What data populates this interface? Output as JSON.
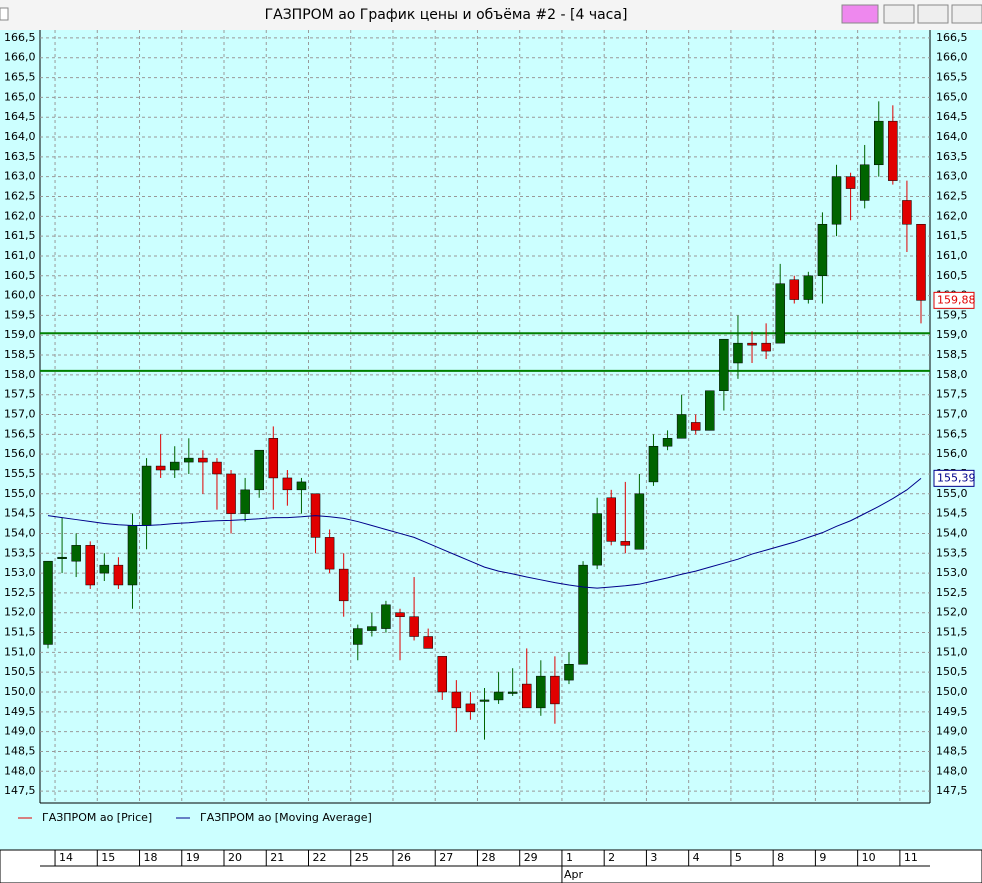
{
  "chart_data": {
    "type": "candlestick",
    "title": "ГАЗПРОМ ао График цены и объёма #2 - [4 часа]",
    "series": [
      {
        "name": "ГАЗПРОМ ао [Price]",
        "color": "#e00000",
        "up_color": "#006400",
        "last_label": "159,88",
        "open": [
          151.2,
          153.4,
          153.3,
          153.7,
          153.0,
          153.2,
          152.7,
          154.2,
          155.7,
          155.6,
          155.8,
          155.9,
          155.8,
          155.5,
          154.5,
          155.1,
          156.4,
          155.4,
          155.1,
          155.0,
          153.9,
          153.1,
          151.2,
          151.55,
          151.6,
          152.0,
          151.9,
          151.4,
          150.9,
          150.0,
          149.7,
          149.8,
          149.8,
          150.0,
          150.2,
          149.6,
          150.4,
          150.3,
          150.7,
          153.2,
          154.9,
          153.8,
          153.6,
          155.3,
          156.2,
          156.4,
          156.8,
          156.6,
          157.6,
          158.3,
          158.8,
          158.8,
          158.8,
          160.4,
          159.9,
          160.5,
          161.8,
          163.0,
          162.4,
          163.3,
          164.4,
          162.4,
          161.8
        ],
        "high": [
          153.3,
          154.4,
          154.0,
          153.8,
          153.5,
          153.4,
          154.5,
          155.9,
          156.5,
          156.2,
          156.4,
          156.1,
          155.9,
          155.6,
          155.4,
          156.1,
          156.7,
          155.6,
          155.4,
          155.0,
          154.1,
          153.5,
          151.7,
          152.0,
          152.3,
          152.1,
          152.9,
          151.6,
          150.9,
          150.3,
          150.0,
          150.1,
          150.5,
          150.6,
          151.1,
          150.8,
          150.9,
          151.0,
          153.3,
          154.9,
          155.1,
          155.3,
          155.5,
          156.5,
          156.6,
          157.5,
          157.0,
          157.6,
          158.9,
          159.5,
          159.1,
          159.3,
          160.8,
          160.5,
          160.6,
          162.1,
          163.3,
          163.1,
          163.8,
          164.9,
          164.8,
          162.9,
          161.8
        ],
        "low": [
          151.1,
          153.0,
          152.9,
          152.6,
          152.8,
          152.6,
          152.1,
          153.6,
          155.4,
          155.4,
          155.5,
          155.0,
          154.6,
          154.0,
          154.3,
          154.9,
          154.6,
          154.7,
          154.5,
          153.5,
          153.0,
          151.9,
          150.8,
          151.4,
          151.5,
          150.8,
          151.3,
          151.1,
          149.8,
          149.0,
          149.3,
          148.8,
          149.7,
          149.9,
          149.6,
          149.4,
          149.2,
          150.2,
          150.7,
          153.1,
          153.7,
          153.5,
          153.6,
          155.2,
          156.1,
          156.4,
          156.5,
          156.6,
          157.1,
          157.9,
          158.3,
          158.4,
          158.8,
          159.8,
          159.8,
          159.8,
          161.5,
          161.9,
          162.2,
          163.0,
          162.8,
          161.1,
          159.3
        ],
        "close": [
          153.3,
          153.4,
          153.7,
          152.7,
          153.2,
          152.7,
          154.2,
          155.7,
          155.6,
          155.8,
          155.9,
          155.8,
          155.5,
          154.5,
          155.1,
          156.1,
          155.4,
          155.1,
          155.3,
          153.9,
          153.1,
          152.3,
          151.6,
          151.65,
          152.2,
          151.9,
          151.4,
          151.1,
          150.0,
          149.6,
          149.5,
          149.8,
          150.0,
          150.0,
          149.6,
          150.4,
          149.7,
          150.7,
          153.2,
          154.5,
          153.8,
          153.7,
          155.0,
          156.2,
          156.4,
          157.0,
          156.6,
          157.6,
          158.9,
          158.8,
          158.75,
          158.6,
          160.3,
          159.9,
          160.5,
          161.8,
          163.0,
          162.7,
          163.3,
          164.4,
          162.9,
          161.8,
          159.88
        ]
      },
      {
        "name": "ГАЗПРОМ ао [Moving Average]",
        "color": "#00008b",
        "last_label": "155,39",
        "values": [
          154.45,
          154.4,
          154.35,
          154.3,
          154.25,
          154.22,
          154.2,
          154.2,
          154.22,
          154.25,
          154.27,
          154.3,
          154.32,
          154.33,
          154.35,
          154.37,
          154.4,
          154.4,
          154.42,
          154.45,
          154.42,
          154.38,
          154.3,
          154.2,
          154.1,
          154.0,
          153.9,
          153.75,
          153.6,
          153.45,
          153.3,
          153.15,
          153.05,
          152.98,
          152.9,
          152.83,
          152.76,
          152.7,
          152.65,
          152.62,
          152.65,
          152.68,
          152.72,
          152.8,
          152.88,
          152.97,
          153.05,
          153.15,
          153.25,
          153.35,
          153.48,
          153.58,
          153.68,
          153.78,
          153.9,
          154.02,
          154.18,
          154.32,
          154.5,
          154.68,
          154.88,
          155.1,
          155.39
        ]
      }
    ],
    "days": [
      "14",
      "15",
      "18",
      "19",
      "20",
      "21",
      "22",
      "25",
      "26",
      "27",
      "28",
      "29",
      "1",
      "2",
      "3",
      "4",
      "5",
      "8",
      "9",
      "10",
      "11"
    ],
    "month": "Apr",
    "hlines": [
      159.05,
      158.1
    ],
    "hline_color": "#008000",
    "ylim": [
      147.2,
      166.7
    ],
    "yticks": [
      {
        "value": 147.5,
        "label": "147,5"
      },
      {
        "value": 148,
        "label": "148,0"
      },
      {
        "value": 148.5,
        "label": "148,5"
      },
      {
        "value": 149,
        "label": "149,0"
      },
      {
        "value": 149.5,
        "label": "149,5"
      },
      {
        "value": 150,
        "label": "150,0"
      },
      {
        "value": 150.5,
        "label": "150,5"
      },
      {
        "value": 151,
        "label": "151,0"
      },
      {
        "value": 151.5,
        "label": "151,5"
      },
      {
        "value": 152,
        "label": "152,0"
      },
      {
        "value": 152.5,
        "label": "152,5"
      },
      {
        "value": 153,
        "label": "153,0"
      },
      {
        "value": 153.5,
        "label": "153,5"
      },
      {
        "value": 154,
        "label": "154,0"
      },
      {
        "value": 154.5,
        "label": "154,5"
      },
      {
        "value": 155,
        "label": "155,0"
      },
      {
        "value": 155.5,
        "label": "155,5"
      },
      {
        "value": 156,
        "label": "156,0"
      },
      {
        "value": 156.5,
        "label": "156,5"
      },
      {
        "value": 157,
        "label": "157,0"
      },
      {
        "value": 157.5,
        "label": "157,5"
      },
      {
        "value": 158,
        "label": "158,0"
      },
      {
        "value": 158.5,
        "label": "158,5"
      },
      {
        "value": 159,
        "label": "159,0"
      },
      {
        "value": 159.5,
        "label": "159,5"
      },
      {
        "value": 160,
        "label": "160,0"
      },
      {
        "value": 160.5,
        "label": "160,5"
      },
      {
        "value": 161,
        "label": "161,0"
      },
      {
        "value": 161.5,
        "label": "161,5"
      },
      {
        "value": 162,
        "label": "162,0"
      },
      {
        "value": 162.5,
        "label": "162,5"
      },
      {
        "value": 163,
        "label": "163,0"
      },
      {
        "value": 163.5,
        "label": "163,5"
      },
      {
        "value": 164,
        "label": "164,0"
      },
      {
        "value": 164.5,
        "label": "164,5"
      },
      {
        "value": 165,
        "label": "165,0"
      },
      {
        "value": 165.5,
        "label": "165,5"
      },
      {
        "value": 166,
        "label": "166,0"
      },
      {
        "value": 166.5,
        "label": "166,5"
      }
    ],
    "grid": true
  }
}
